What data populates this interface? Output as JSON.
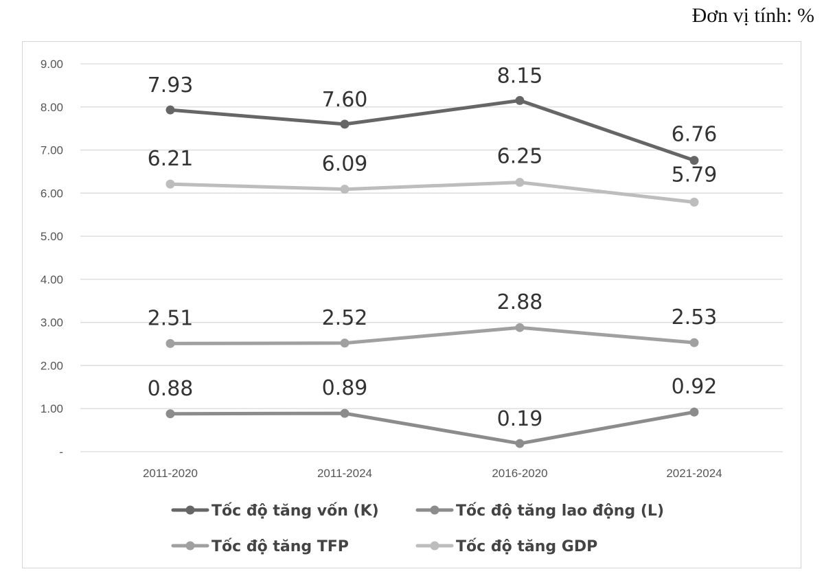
{
  "unit_label": "Đơn vị tính: %",
  "chart_data": {
    "type": "line",
    "title": "",
    "xlabel": "",
    "ylabel": "",
    "categories": [
      "2011-2020",
      "2011-2024",
      "2016-2020",
      "2021-2024"
    ],
    "ylim": [
      0,
      9
    ],
    "yticks": [
      0,
      1,
      2,
      3,
      4,
      5,
      6,
      7,
      8,
      9
    ],
    "ytick_labels": [
      "-",
      "1.00",
      "2.00",
      "3.00",
      "4.00",
      "5.00",
      "6.00",
      "7.00",
      "8.00",
      "9.00"
    ],
    "grid": true,
    "legend_position": "bottom",
    "series": [
      {
        "key": "k",
        "name": "Tốc độ tăng vốn (K)",
        "color": "#666666",
        "values": [
          7.93,
          7.6,
          8.15,
          6.76
        ],
        "labels": [
          "7.93",
          "7.60",
          "8.15",
          "6.76"
        ]
      },
      {
        "key": "l",
        "name": "Tốc độ tăng lao động (L)",
        "color": "#8c8c8c",
        "values": [
          0.88,
          0.89,
          0.19,
          0.92
        ],
        "labels": [
          "0.88",
          "0.89",
          "0.19",
          "0.92"
        ]
      },
      {
        "key": "tfp",
        "name": "Tốc độ tăng TFP",
        "color": "#a0a0a0",
        "values": [
          2.51,
          2.52,
          2.88,
          2.53
        ],
        "labels": [
          "2.51",
          "2.52",
          "2.88",
          "2.53"
        ]
      },
      {
        "key": "gdp",
        "name": "Tốc độ tăng GDP",
        "color": "#bdbdbd",
        "values": [
          6.21,
          6.09,
          6.25,
          5.79
        ],
        "labels": [
          "6.21",
          "6.09",
          "6.25",
          "5.79"
        ]
      }
    ]
  }
}
